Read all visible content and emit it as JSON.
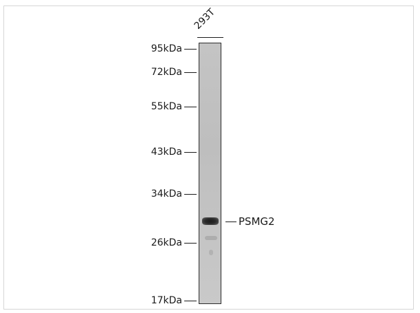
{
  "lane": {
    "label": "293T"
  },
  "markers": [
    {
      "label": "95kDa"
    },
    {
      "label": "72kDa"
    },
    {
      "label": "55kDa"
    },
    {
      "label": "43kDa"
    },
    {
      "label": "34kDa"
    },
    {
      "label": "26kDa"
    },
    {
      "label": "17kDa"
    }
  ],
  "protein_label": "PSMG2"
}
